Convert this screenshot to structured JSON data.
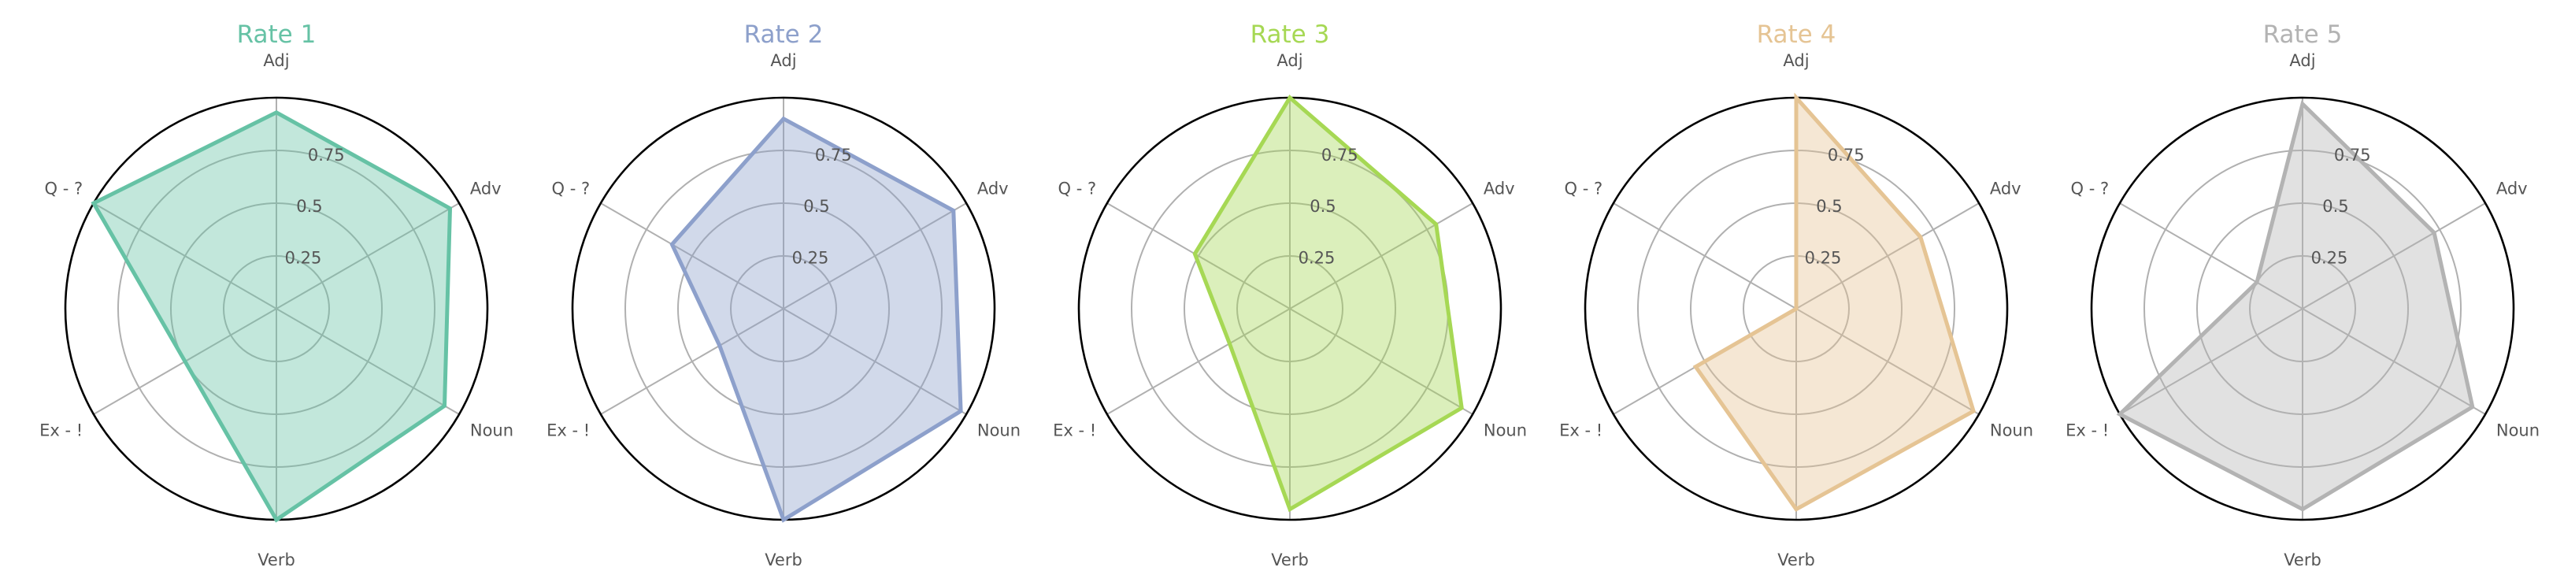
{
  "chart_data": {
    "type": "radar",
    "categories": [
      "Adj",
      "Adv",
      "Noun",
      "Verb",
      "Ex - !",
      "Q - ?"
    ],
    "radial_ticks": [
      "0.25",
      "0.5",
      "0.75"
    ],
    "rlim": [
      0,
      1
    ],
    "grid": true,
    "charts": [
      {
        "title": "Rate 1",
        "color": "#66c2a5",
        "values": [
          0.93,
          0.95,
          0.92,
          1.0,
          0.5,
          1.0
        ]
      },
      {
        "title": "Rate 2",
        "color": "#8da0cb",
        "values": [
          0.9,
          0.93,
          0.97,
          1.0,
          0.35,
          0.61
        ]
      },
      {
        "title": "Rate 3",
        "color": "#a6d854",
        "values": [
          1.0,
          0.8,
          0.94,
          0.95,
          0.33,
          0.52
        ]
      },
      {
        "title": "Rate 4",
        "color": "#e5c494",
        "values": [
          1.0,
          0.68,
          0.97,
          0.95,
          0.55,
          0.0
        ]
      },
      {
        "title": "Rate 5",
        "color": "#b3b3b3",
        "values": [
          0.97,
          0.72,
          0.93,
          0.95,
          1.0,
          0.25
        ]
      }
    ]
  }
}
